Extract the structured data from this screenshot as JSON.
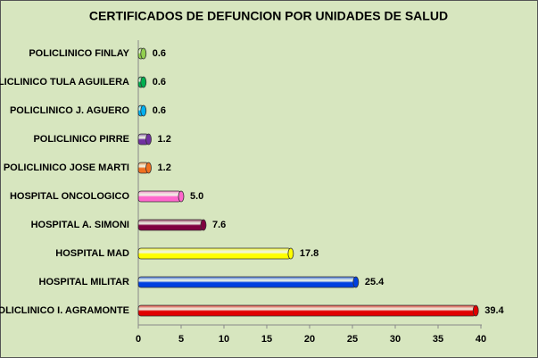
{
  "chart_data": {
    "type": "bar",
    "orientation": "horizontal",
    "title": "CERTIFICADOS DE DEFUNCION POR UNIDADES DE SALUD",
    "categories": [
      "POLICLINICO FINLAY",
      "POLICLINICO TULA AGUILERA",
      "POLICLINICO J. AGUERO",
      "POLICLINICO PIRRE",
      "POLICLINICO JOSE MARTI",
      "HOSPITAL ONCOLOGICO",
      "HOSPITAL A. SIMONI",
      "HOSPITAL MAD",
      "HOSPITAL MILITAR",
      "POLICLINICO I. AGRAMONTE"
    ],
    "values": [
      0.6,
      0.6,
      0.6,
      1.2,
      1.2,
      5.0,
      7.6,
      17.8,
      25.4,
      39.4
    ],
    "value_labels": [
      "0.6",
      "0.6",
      "0.6",
      "1.2",
      "1.2",
      "5.0",
      "7.6",
      "17.8",
      "25.4",
      "39.4"
    ],
    "colors": [
      "#92d050",
      "#00b050",
      "#00b0f0",
      "#7030a0",
      "#f07020",
      "#ff66cc",
      "#800040",
      "#ffff00",
      "#0040e0",
      "#e00000"
    ],
    "xlim": [
      0,
      40
    ],
    "xticks": [
      0,
      5,
      10,
      15,
      20,
      25,
      30,
      35,
      40
    ]
  }
}
